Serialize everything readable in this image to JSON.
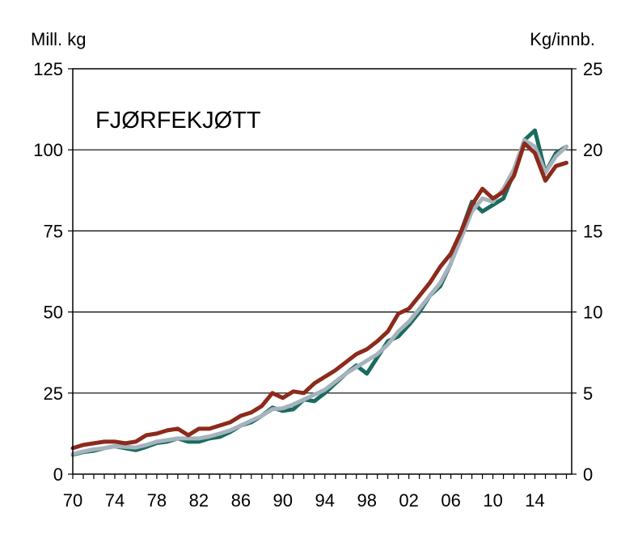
{
  "chart_data": {
    "type": "line",
    "title": "FJØRFEKJØTT",
    "y_left_unit": "Mill. kg",
    "y_right_unit": "Kg/innb.",
    "ylim_left": [
      0,
      125
    ],
    "ylim_right": [
      0,
      25
    ],
    "yticks_left": [
      "0",
      "25",
      "50",
      "75",
      "100",
      "125"
    ],
    "yticks_right": [
      "0",
      "5",
      "10",
      "15",
      "20",
      "25"
    ],
    "xlim": [
      1970,
      2017.5
    ],
    "xtick_labels": [
      "70",
      "74",
      "78",
      "82",
      "86",
      "90",
      "94",
      "98",
      "02",
      "06",
      "10",
      "14"
    ],
    "grid": "horizontal",
    "x": [
      1970,
      1971,
      1972,
      1973,
      1974,
      1975,
      1976,
      1977,
      1978,
      1979,
      1980,
      1981,
      1982,
      1983,
      1984,
      1985,
      1986,
      1987,
      1988,
      1989,
      1990,
      1991,
      1992,
      1993,
      1994,
      1995,
      1996,
      1997,
      1998,
      1999,
      2000,
      2001,
      2002,
      2003,
      2004,
      2005,
      2006,
      2007,
      2008,
      2009,
      2010,
      2011,
      2012,
      2013,
      2014,
      2015,
      2016,
      2017
    ],
    "series": [
      {
        "color": "#1a6b5e",
        "axis": "left",
        "values": [
          6,
          6.8,
          7.2,
          8,
          8.6,
          8,
          7.4,
          8.4,
          9.6,
          10,
          11,
          10,
          10,
          11,
          11.5,
          13,
          15,
          16,
          18,
          20.5,
          19.5,
          20,
          23,
          22.5,
          25,
          28,
          31,
          33.5,
          31,
          36,
          41,
          42.5,
          46,
          50,
          55,
          58,
          65,
          75,
          84,
          81,
          83,
          85,
          93,
          103,
          106,
          93,
          99,
          101
        ]
      },
      {
        "color": "#a5b3bc",
        "axis": "left",
        "values": [
          6.2,
          7,
          7.6,
          8,
          8.6,
          8.4,
          8.2,
          9,
          10,
          10.5,
          11,
          11,
          11,
          11.6,
          12.5,
          13.5,
          15,
          16.5,
          18,
          20,
          20.3,
          21.5,
          23,
          24.5,
          26,
          28.5,
          31,
          33,
          35,
          37,
          40,
          44,
          47,
          51,
          55,
          59,
          65,
          73,
          81,
          85,
          84,
          88,
          94,
          103,
          101,
          93,
          98,
          101
        ]
      },
      {
        "color": "#8c2a1c",
        "axis": "left",
        "values": [
          8,
          9,
          9.5,
          10,
          10,
          9.5,
          10,
          12,
          12.5,
          13.5,
          14,
          12,
          14,
          14,
          15,
          16,
          18,
          19,
          21,
          25,
          23.5,
          25.5,
          25,
          28,
          30,
          32,
          34.5,
          37,
          38.5,
          41,
          44,
          49.5,
          51,
          55,
          59,
          64,
          68,
          75,
          83,
          88,
          85,
          87,
          92,
          102,
          99,
          90.5,
          95,
          96
        ]
      }
    ]
  }
}
